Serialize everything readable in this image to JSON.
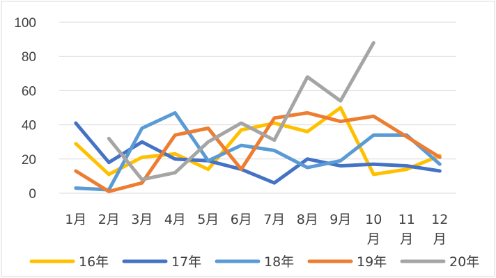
{
  "chart_data": {
    "type": "line",
    "title": "",
    "xlabel": "",
    "ylabel": "",
    "ylim": [
      0,
      100
    ],
    "yticks": [
      0,
      20,
      40,
      60,
      80,
      100
    ],
    "grid": "horizontal",
    "legend_position": "bottom",
    "categories": [
      "1月",
      "2月",
      "3月",
      "4月",
      "5月",
      "6月",
      "7月",
      "8月",
      "9月",
      "10月",
      "11月",
      "12月"
    ],
    "series": [
      {
        "name": "16年",
        "color": "#FFC000",
        "values": [
          29,
          11,
          21,
          23,
          14,
          37,
          41,
          36,
          50,
          11,
          14,
          22
        ]
      },
      {
        "name": "17年",
        "color": "#4472C4",
        "values": [
          41,
          18,
          30,
          20,
          19,
          14,
          6,
          20,
          16,
          17,
          16,
          13
        ]
      },
      {
        "name": "18年",
        "color": "#5B9BD5",
        "values": [
          3,
          2,
          38,
          47,
          19,
          28,
          25,
          15,
          19,
          34,
          34,
          17
        ]
      },
      {
        "name": "19年",
        "color": "#ED7D31",
        "values": [
          13,
          1,
          6,
          34,
          38,
          14,
          44,
          47,
          42,
          45,
          33,
          21
        ]
      },
      {
        "name": "20年",
        "color": "#A5A5A5",
        "values": [
          null,
          32,
          8,
          12,
          30,
          41,
          31,
          68,
          54,
          88,
          null,
          null
        ]
      }
    ]
  }
}
